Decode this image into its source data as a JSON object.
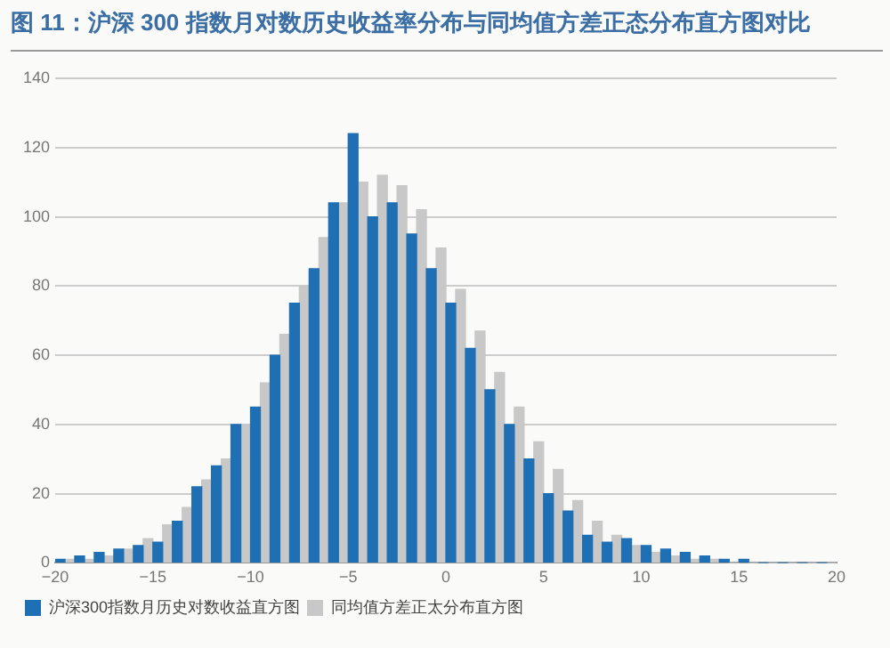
{
  "chart_data": {
    "type": "histogram",
    "title": "图 11：沪深 300 指数月对数历史收益率分布与同均值方差正态分布直方图对比",
    "bins": [
      -20,
      -19,
      -18,
      -17,
      -16,
      -15,
      -14,
      -13,
      -12,
      -11,
      -10,
      -9,
      -8,
      -7,
      -6,
      -5,
      -4,
      -3,
      -2,
      -1,
      0,
      1,
      2,
      3,
      4,
      5,
      6,
      7,
      8,
      9,
      10,
      11,
      12,
      13,
      14,
      15,
      16,
      17,
      18,
      19,
      20
    ],
    "series": [
      {
        "name": "沪深300指数月历史对数收益直方图",
        "color": "#1f6fb5",
        "values": [
          1,
          2,
          3,
          4,
          5,
          6,
          12,
          22,
          28,
          40,
          45,
          60,
          75,
          85,
          104,
          124,
          100,
          104,
          95,
          85,
          75,
          62,
          50,
          40,
          30,
          20,
          15,
          8,
          6,
          7,
          5,
          4,
          3,
          2,
          1,
          1,
          0,
          0,
          0,
          0
        ]
      },
      {
        "name": "同均值方差正太分布直方图",
        "color": "#c8c8c8",
        "values": [
          1,
          1,
          2,
          4,
          7,
          11,
          16,
          24,
          30,
          40,
          52,
          66,
          80,
          94,
          104,
          110,
          112,
          109,
          102,
          91,
          79,
          67,
          55,
          45,
          35,
          27,
          18,
          12,
          8,
          5,
          3,
          2,
          1,
          1,
          0,
          0,
          0,
          0,
          0,
          0
        ]
      }
    ],
    "xlim": [
      -20,
      20
    ],
    "xticks": [
      -20,
      -15,
      -10,
      -5,
      0,
      5,
      10,
      15,
      20
    ],
    "ylim": [
      0,
      140
    ],
    "yticks": [
      0,
      20,
      40,
      60,
      80,
      100,
      120,
      140
    ],
    "grid": "y",
    "legend": "bottom"
  }
}
